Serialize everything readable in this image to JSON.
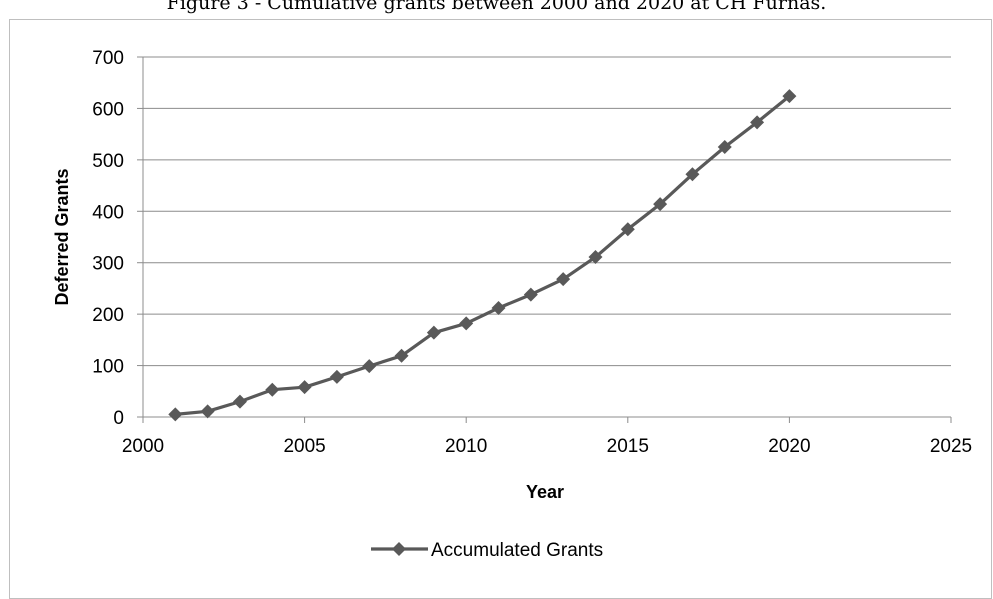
{
  "figure": {
    "caption": "Figure 3 - Cumulative grants between 2000 and 2020 at CH Furnas."
  },
  "chart_data": {
    "type": "scatter",
    "title": "",
    "xlabel": "Year",
    "ylabel": "Deferred Grants",
    "xlim": [
      2000,
      2025
    ],
    "ylim": [
      0,
      700
    ],
    "x_ticks": [
      2000,
      2005,
      2010,
      2015,
      2020,
      2025
    ],
    "y_ticks": [
      0,
      100,
      200,
      300,
      400,
      500,
      600,
      700
    ],
    "x_tick_labels": [
      "2000",
      "2005",
      "2010",
      "2015",
      "2020",
      "2025"
    ],
    "y_tick_labels": [
      "0",
      "100",
      "200",
      "300",
      "400",
      "500",
      "600",
      "700"
    ],
    "grid": "horizontal",
    "legend_position": "bottom",
    "series": [
      {
        "name": "Accumulated Grants",
        "color": "#595959",
        "marker": "diamond",
        "x": [
          2001,
          2002,
          2003,
          2004,
          2005,
          2006,
          2007,
          2008,
          2009,
          2010,
          2011,
          2012,
          2013,
          2014,
          2015,
          2016,
          2017,
          2018,
          2019,
          2020
        ],
        "y": [
          5,
          11,
          30,
          53,
          58,
          78,
          99,
          119,
          164,
          182,
          212,
          238,
          268,
          311,
          365,
          414,
          472,
          525,
          573,
          624
        ]
      }
    ]
  }
}
